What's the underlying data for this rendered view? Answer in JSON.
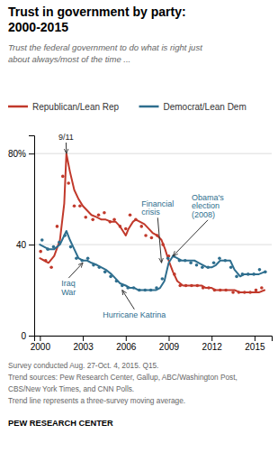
{
  "chart_data": {
    "type": "line",
    "title": "Trust in government by party:\n2000-2015",
    "subtitle": "Trust the federal government to do what is right just\nabout always/most of the time ...",
    "legend": "top",
    "grid": true,
    "xlim": [
      1999.6,
      2016.2
    ],
    "xticks": [
      2000,
      2003,
      2006,
      2009,
      2012,
      2015
    ],
    "ylim": [
      0,
      88
    ],
    "yticks": [
      0,
      40,
      {
        "value": 80,
        "label": "80%"
      }
    ],
    "series": [
      {
        "name": "Republican/Lean Rep",
        "type": "line",
        "color": "#C1392B",
        "x": [
          2000.0,
          2000.3,
          2000.6,
          2001.0,
          2001.4,
          2001.7,
          2001.85,
          2002.1,
          2002.4,
          2002.7,
          2003.0,
          2003.3,
          2003.6,
          2004.0,
          2004.3,
          2004.6,
          2005.0,
          2005.3,
          2005.6,
          2006.0,
          2006.2,
          2006.5,
          2006.7,
          2007.0,
          2007.3,
          2007.6,
          2007.9,
          2008.2,
          2008.5,
          2008.75,
          2009.0,
          2009.3,
          2009.6,
          2010.0,
          2010.3,
          2010.6,
          2011.0,
          2011.3,
          2011.6,
          2012.0,
          2012.3,
          2012.6,
          2013.0,
          2013.3,
          2013.6,
          2014.0,
          2014.3,
          2014.6,
          2015.0,
          2015.3,
          2015.7
        ],
        "values": [
          34,
          33,
          32,
          35,
          42,
          58,
          80,
          72,
          64,
          60,
          57,
          55,
          53,
          52,
          51,
          51,
          50,
          50,
          48,
          44,
          47,
          50,
          51,
          50,
          49,
          47,
          45,
          44,
          42,
          38,
          33,
          28,
          24,
          22,
          22,
          22,
          22,
          22,
          21,
          21,
          20,
          20,
          20,
          20,
          20,
          19,
          19,
          19,
          19,
          19,
          20
        ]
      },
      {
        "name": "Democrat/Lean Dem",
        "type": "line",
        "color": "#2E6E8E",
        "x": [
          2000.0,
          2000.3,
          2000.6,
          2001.0,
          2001.4,
          2001.7,
          2001.85,
          2002.1,
          2002.4,
          2002.7,
          2003.0,
          2003.3,
          2003.6,
          2004.0,
          2004.3,
          2004.6,
          2005.0,
          2005.3,
          2005.6,
          2006.0,
          2006.3,
          2006.6,
          2006.9,
          2007.2,
          2007.5,
          2007.8,
          2008.1,
          2008.4,
          2008.7,
          2009.0,
          2009.3,
          2009.6,
          2009.9,
          2010.2,
          2010.5,
          2010.8,
          2011.1,
          2011.4,
          2011.7,
          2012.0,
          2012.3,
          2012.6,
          2013.0,
          2013.3,
          2013.6,
          2014.0,
          2014.3,
          2014.6,
          2015.0,
          2015.3,
          2015.7
        ],
        "values": [
          40,
          39,
          38,
          38,
          40,
          44,
          46,
          42,
          38,
          34,
          33,
          33,
          32,
          31,
          30,
          29,
          27,
          25,
          23,
          22,
          21,
          21,
          20,
          20,
          20,
          20,
          20,
          21,
          24,
          32,
          35,
          34,
          33,
          33,
          33,
          33,
          32,
          31,
          30,
          30,
          31,
          33,
          33,
          33,
          29,
          26,
          27,
          27,
          27,
          27,
          28
        ]
      },
      {
        "type": "scatter",
        "color": "#C1392B",
        "x": [
          2000.05,
          2000.4,
          2000.8,
          2001.2,
          2001.6,
          2002.0,
          2002.4,
          2002.8,
          2003.2,
          2003.7,
          2004.1,
          2004.5,
          2004.9,
          2005.2,
          2005.6,
          2006.0,
          2006.3,
          2006.7,
          2007.1,
          2007.4,
          2007.8,
          2008.2,
          2008.6,
          2009.0,
          2009.4,
          2009.8,
          2010.2,
          2010.6,
          2011.0,
          2011.4,
          2011.8,
          2012.2,
          2012.6,
          2013.0,
          2013.5,
          2013.9,
          2014.3,
          2014.7,
          2015.1,
          2015.5
        ],
        "values": [
          37,
          33,
          30,
          48,
          70,
          67,
          57,
          57,
          52,
          51,
          53,
          54,
          50,
          51,
          48,
          47,
          53,
          51,
          48,
          44,
          43,
          44,
          40,
          35,
          27,
          22,
          22,
          22,
          22,
          21,
          21,
          20,
          20,
          20,
          19,
          19,
          19,
          19,
          20,
          21
        ]
      },
      {
        "type": "scatter",
        "color": "#2E6E8E",
        "x": [
          2000.15,
          2000.55,
          2000.95,
          2001.35,
          2001.75,
          2002.15,
          2002.55,
          2002.95,
          2003.35,
          2003.75,
          2004.15,
          2004.55,
          2004.95,
          2005.35,
          2005.75,
          2006.15,
          2006.55,
          2006.95,
          2007.35,
          2007.75,
          2008.15,
          2008.55,
          2008.95,
          2009.35,
          2009.75,
          2010.15,
          2010.55,
          2010.95,
          2011.35,
          2011.75,
          2012.15,
          2012.55,
          2012.95,
          2013.35,
          2013.75,
          2014.15,
          2014.55,
          2014.95,
          2015.35,
          2015.75
        ],
        "values": [
          42,
          38,
          39,
          41,
          44,
          39,
          34,
          33,
          34,
          31,
          30,
          28,
          26,
          24,
          22,
          21,
          21,
          20,
          20,
          20,
          21,
          25,
          34,
          35,
          33,
          33,
          32,
          31,
          30,
          30,
          32,
          34,
          33,
          30,
          26,
          27,
          27,
          27,
          29,
          28
        ]
      }
    ],
    "annotations": [
      {
        "text": "9/11",
        "x": 2001.85,
        "y": 80,
        "text_x": 2001.3,
        "text_y": 86,
        "color": "#222222"
      },
      {
        "text": "Iraq\nWar",
        "x": 2003.0,
        "y": 32,
        "text_x": 2001.5,
        "text_y": 18,
        "color": "#2E6E8E"
      },
      {
        "text": "Hurricane Katrina",
        "x": 2005.75,
        "y": 20,
        "text_x": 2004.4,
        "text_y": 8,
        "color": "#2E6E8E"
      },
      {
        "text": "Financial\ncrisis",
        "x": 2008.5,
        "y": 32,
        "text_x": 2007.1,
        "text_y": 53,
        "color": "#2E6E8E"
      },
      {
        "text": "Obama's\nelection\n(2008)",
        "x": 2009.3,
        "y": 35,
        "text_x": 2010.6,
        "text_y": 52,
        "color": "#2E6E8E"
      }
    ],
    "notes": [
      "Survey conducted Aug. 27-Oct. 4, 2015. Q15.",
      "Trend sources: Pew Research Center, Gallup, ABC/Washington Post,",
      "CBS/New York Times, and CNN Polls.",
      "Trend line represents a three-survey moving average."
    ],
    "source": "PEW RESEARCH CENTER"
  }
}
